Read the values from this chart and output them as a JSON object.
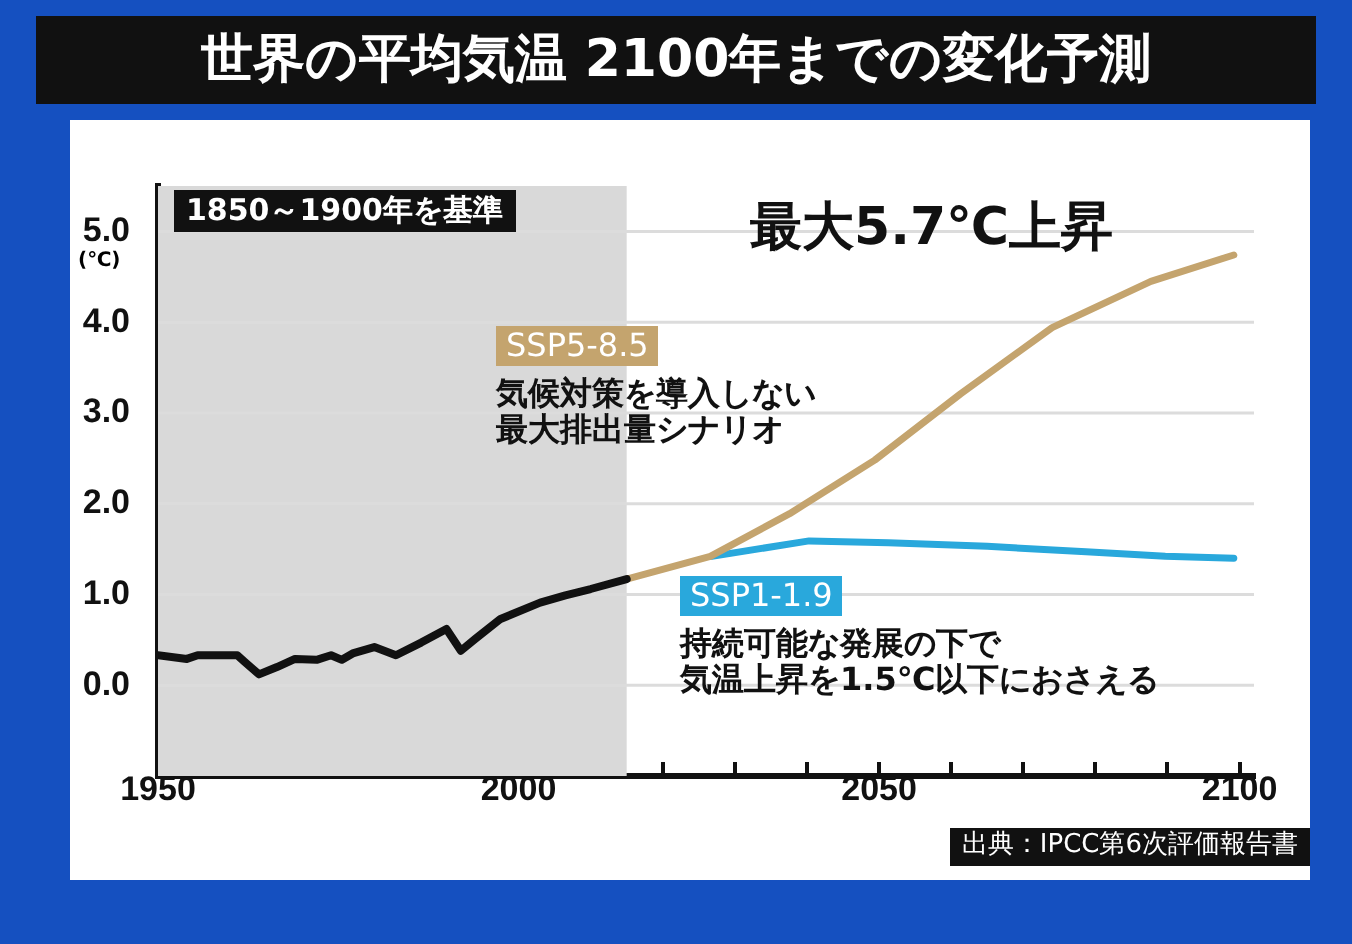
{
  "chart_data": {
    "type": "line",
    "title": "世界の平均気温 2100年までの変化予測",
    "ylabel": "(℃)",
    "series": [
      {
        "color": "#111111",
        "x": [
          1950,
          1954,
          1955.5,
          1961,
          1962,
          1964,
          1966.5,
          1969,
          1972,
          1974,
          1975.5,
          1977,
          1980,
          1983,
          1986.5,
          1990,
          1992,
          1994,
          1997.5,
          2003,
          2006.5,
          2010,
          2015
        ],
        "values": [
          0.33,
          0.29,
          0.33,
          0.33,
          0.26,
          0.12,
          0.2,
          0.29,
          0.28,
          0.33,
          0.28,
          0.35,
          0.42,
          0.33,
          0.47,
          0.62,
          0.38,
          0.51,
          0.73,
          0.91,
          0.99,
          1.06,
          1.17
        ]
      },
      {
        "name": "SSP5-8.5",
        "color": "#c4a46e",
        "x": [
          2015,
          2026.6,
          2037.6,
          2049.4,
          2061.3,
          2074,
          2087.7,
          2099.2
        ],
        "values": [
          1.17,
          1.42,
          1.89,
          2.48,
          3.21,
          3.94,
          4.45,
          4.74
        ]
      },
      {
        "name": "SSP1-1.9",
        "color": "#29a8dc",
        "x": [
          2026.8,
          2040.3,
          2051.3,
          2065,
          2078.7,
          2089.7,
          2099.2
        ],
        "values": [
          1.42,
          1.59,
          1.57,
          1.53,
          1.47,
          1.42,
          1.4
        ]
      }
    ],
    "xlim": [
      1950,
      2102
    ],
    "xticks": [
      1950,
      {
        "value": 1960,
        "label": null
      },
      {
        "value": 1970,
        "label": null
      },
      {
        "value": 1980,
        "label": null
      },
      {
        "value": 1990,
        "label": null
      },
      2000,
      {
        "value": 2010,
        "label": null
      },
      {
        "value": 2020,
        "label": null
      },
      {
        "value": 2030,
        "label": null
      },
      {
        "value": 2040,
        "label": null
      },
      2050,
      {
        "value": 2060,
        "label": null
      },
      {
        "value": 2070,
        "label": null
      },
      {
        "value": 2080,
        "label": null
      },
      {
        "value": 2090,
        "label": null
      },
      2100
    ],
    "ylim": [
      -1,
      5.5
    ],
    "yticks": [
      {
        "value": 0,
        "label": "0.0"
      },
      {
        "value": 1,
        "label": "1.0"
      },
      {
        "value": 2,
        "label": "2.0"
      },
      {
        "value": 3,
        "label": "3.0"
      },
      {
        "value": 4,
        "label": "4.0"
      },
      {
        "value": 5,
        "label": "5.0"
      }
    ],
    "bands": [
      {
        "axis": "x",
        "from": 1950,
        "to": 2015,
        "label": "1850～1900年を基準",
        "color": "#d9d9d9"
      }
    ],
    "annotations": [
      "最大5.7℃上昇",
      "気候対策を導入しない",
      "最大排出量シナリオ",
      "持続可能な発展の下で",
      "気温上昇を1.5℃以下におさえる",
      "出典：IPCC第6次評価報告書"
    ],
    "grid": "y",
    "legend": false,
    "marker": "none",
    "line_style": "solid"
  }
}
